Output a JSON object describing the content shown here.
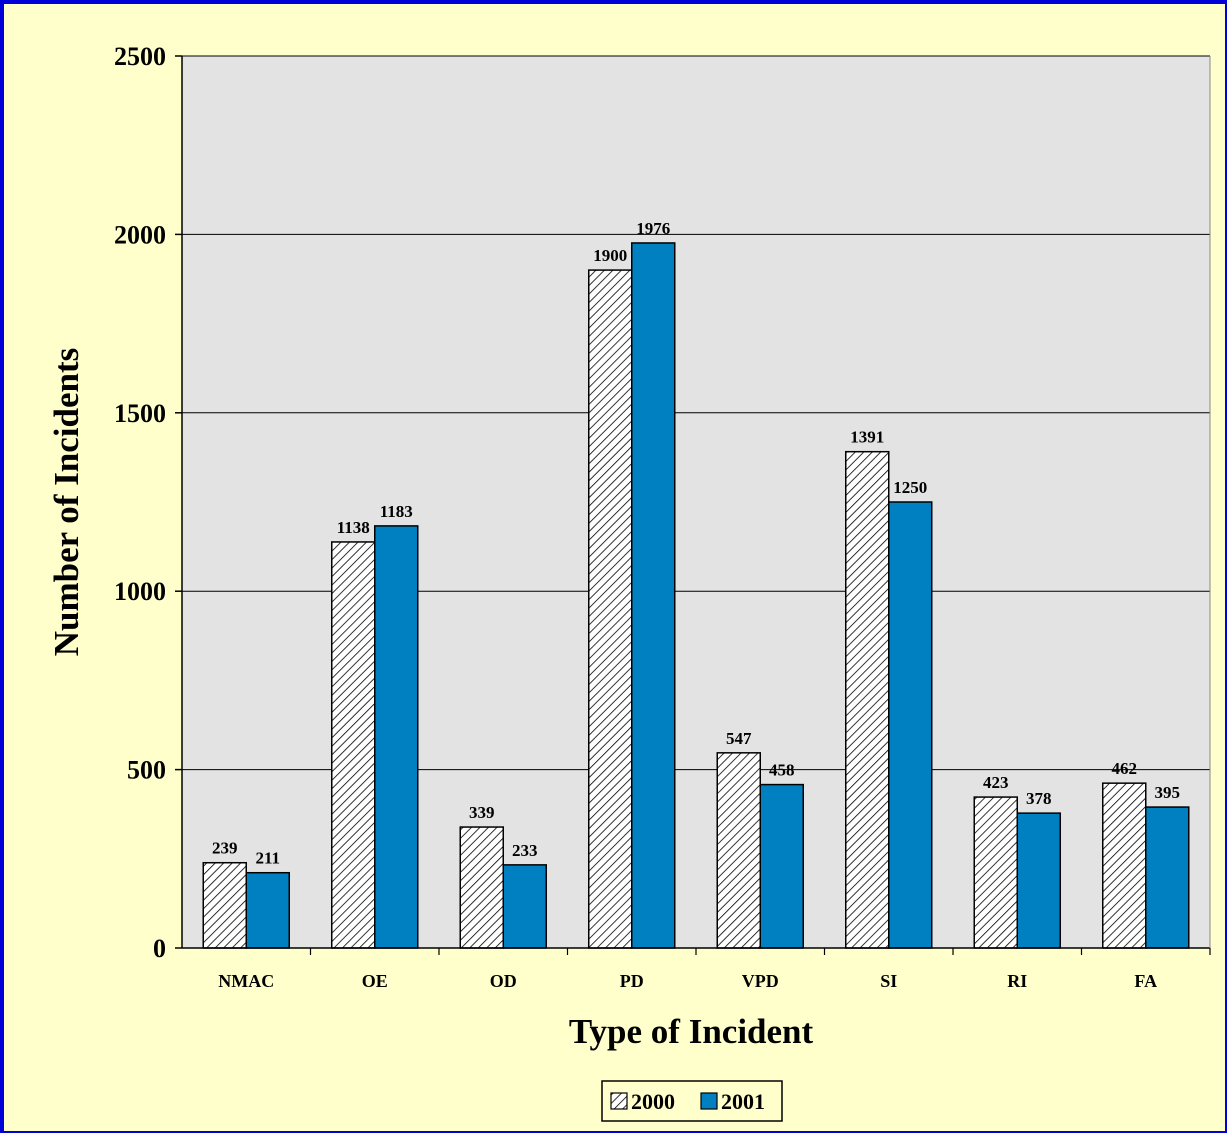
{
  "chart_data": {
    "type": "bar",
    "title": "",
    "xlabel": "Type of Incident",
    "ylabel": "Number of Incidents",
    "categories": [
      "NMAC",
      "OE",
      "OD",
      "PD",
      "VPD",
      "SI",
      "RI",
      "FA"
    ],
    "series": [
      {
        "name": "2000",
        "values": [
          239,
          1138,
          339,
          1900,
          547,
          1391,
          423,
          462
        ],
        "pattern": "diagonal-hatch",
        "color": "#ffffff"
      },
      {
        "name": "2001",
        "values": [
          211,
          1183,
          233,
          1976,
          458,
          1250,
          378,
          395
        ],
        "pattern": "solid",
        "color": "#0080c0"
      }
    ],
    "ylim": [
      0,
      2500
    ],
    "yticks": [
      0,
      500,
      1000,
      1500,
      2000,
      2500
    ],
    "grid": true,
    "legend_position": "bottom-center"
  },
  "colors": {
    "page_background": "#ffffcc",
    "plot_background": "#e3e3e3",
    "border": "#0000d8"
  }
}
